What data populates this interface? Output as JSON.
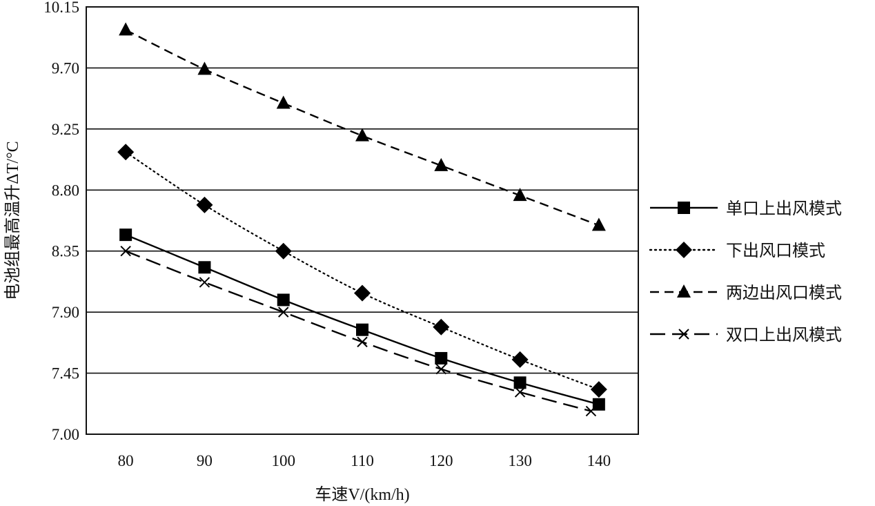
{
  "chart_data": {
    "type": "line",
    "title": "",
    "xlabel": "车速V/(km/h)",
    "ylabel": "电池组最高温升ΔT/°C",
    "xlim": [
      75,
      145
    ],
    "ylim": [
      7.0,
      10.15
    ],
    "x_ticks": [
      "80",
      "90",
      "100",
      "110",
      "120",
      "130",
      "140"
    ],
    "y_ticks": [
      "10.15",
      "9.70",
      "9.25",
      "8.80",
      "8.35",
      "7.90",
      "7.45",
      "7.00"
    ],
    "grid": "horizontal",
    "legend_position": "right",
    "series": [
      {
        "name": "单口上出风模式",
        "marker": "square",
        "line_style": "solid",
        "x": [
          80,
          90,
          100,
          110,
          120,
          130,
          140
        ],
        "y": [
          8.47,
          8.23,
          7.99,
          7.77,
          7.56,
          7.38,
          7.22
        ]
      },
      {
        "name": "下出风口模式",
        "marker": "diamond",
        "line_style": "dotted",
        "x": [
          80,
          90,
          100,
          110,
          120,
          130,
          140
        ],
        "y": [
          9.08,
          8.69,
          8.35,
          8.04,
          7.79,
          7.55,
          7.33
        ]
      },
      {
        "name": "两边出风口模式",
        "marker": "triangle",
        "line_style": "dashed",
        "x": [
          80,
          90,
          100,
          110,
          120,
          130,
          140
        ],
        "y": [
          9.98,
          9.69,
          9.44,
          9.2,
          8.98,
          8.76,
          8.54
        ]
      },
      {
        "name": "双口上出风模式",
        "marker": "cross",
        "line_style": "long-dash",
        "x": [
          80,
          90,
          100,
          110,
          120,
          130,
          139
        ],
        "y": [
          8.35,
          8.12,
          7.9,
          7.68,
          7.48,
          7.31,
          7.17
        ]
      }
    ]
  }
}
